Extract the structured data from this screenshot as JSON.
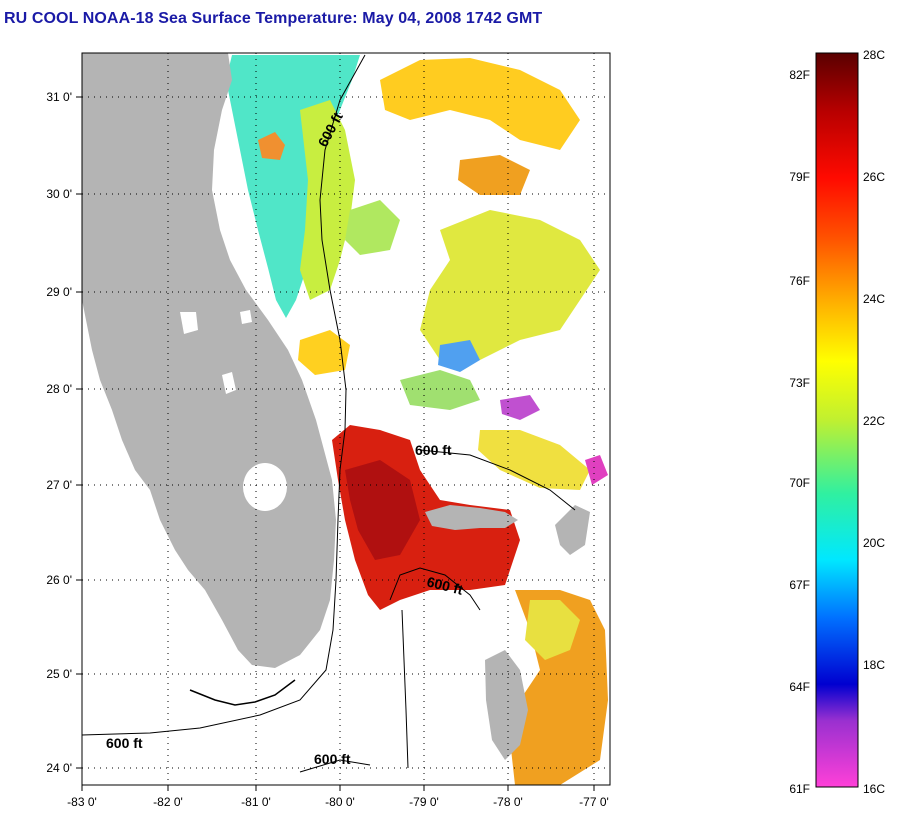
{
  "title": "RU COOL  NOAA-18  Sea Surface Temperature:  May 04, 2008 1742 GMT",
  "map": {
    "lon_labels": [
      "-83 0'",
      "-82 0'",
      "-81 0'",
      "-80 0'",
      "-79 0'",
      "-78 0'",
      "-77 0'"
    ],
    "lat_labels": [
      "31 0'",
      "30 0'",
      "29 0'",
      "28 0'",
      "27 0'",
      "26 0'",
      "25 0'",
      "24 0'"
    ],
    "contour_label": "600 ft",
    "colors": {
      "land": "#b4b4b4",
      "cloud_mask": "#ffffff",
      "frame": "#000000"
    }
  },
  "colorbar": {
    "fahrenheit_labels": [
      "82F",
      "79F",
      "76F",
      "73F",
      "70F",
      "67F",
      "64F",
      "61F"
    ],
    "celsius_labels": [
      "28C",
      "26C",
      "24C",
      "22C",
      "20C",
      "18C",
      "16C"
    ],
    "range_celsius": [
      16,
      28
    ],
    "colors": [
      "#ff40d8",
      "#8a20c8",
      "#2020e0",
      "#0060ff",
      "#00d8ff",
      "#40f0a0",
      "#b0f040",
      "#ffff00",
      "#ffb000",
      "#ff6000",
      "#ff1000",
      "#c00000",
      "#6a0000"
    ]
  }
}
